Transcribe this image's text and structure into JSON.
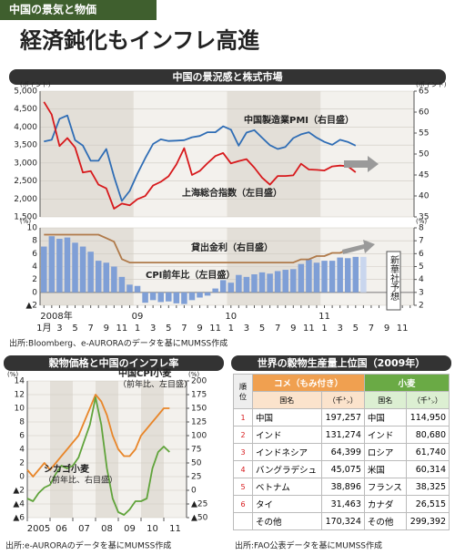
{
  "header": {
    "tag": "中国の景気と物価",
    "title": "経済鈍化もインフレ高進"
  },
  "chart_data": [
    {
      "type": "line",
      "title": "中国の景況感と株式市場",
      "series": [
        {
          "name": "中国製造業PMI（右目盛）",
          "color": "#2f6db5",
          "axis": "y2",
          "values": [
            53.0,
            53.4,
            58.4,
            59.2,
            53.3,
            52.0,
            48.4,
            48.4,
            51.2,
            44.6,
            38.8,
            41.2,
            45.3,
            49.0,
            52.4,
            53.5,
            53.1,
            53.2,
            53.3,
            54.0,
            54.3,
            55.2,
            55.2,
            56.6,
            55.8,
            52.0,
            55.1,
            55.7,
            53.9,
            52.1,
            51.2,
            51.7,
            53.8,
            54.7,
            55.2,
            53.9,
            52.9,
            52.2,
            53.4,
            52.9,
            52.0,
            null,
            null,
            null,
            null,
            null,
            null,
            null
          ]
        },
        {
          "name": "上海総合指数（左目盛）",
          "color": "#d7191c",
          "values": [
            4700,
            4348,
            3473,
            3693,
            3433,
            2736,
            2775,
            2397,
            2293,
            1729,
            1871,
            1821,
            1991,
            2082,
            2373,
            2477,
            2632,
            2959,
            3412,
            2667,
            2779,
            2996,
            3195,
            3277,
            2989,
            3051,
            3109,
            2870,
            2592,
            2398,
            2638,
            2639,
            2656,
            2979,
            2820,
            2808,
            2790,
            2905,
            2928,
            2911,
            2743,
            null,
            null,
            null,
            null,
            null,
            null,
            null
          ]
        }
      ],
      "ylim": [
        1500,
        5000
      ],
      "yticks": [
        {
          "value": 1500,
          "label": "1,500"
        },
        {
          "value": 2000,
          "label": "2,000"
        },
        {
          "value": 2500,
          "label": "2,500"
        },
        {
          "value": 3000,
          "label": "3,000"
        },
        {
          "value": 3500,
          "label": "3,500"
        },
        {
          "value": 4000,
          "label": "4,000"
        },
        {
          "value": 4500,
          "label": "4,500"
        },
        {
          "value": 5000,
          "label": "5,000"
        }
      ],
      "y2lim": [
        35,
        65
      ],
      "y2ticks": [
        35,
        40,
        45,
        50,
        55,
        60,
        65
      ],
      "y_unit": "(ポイント)",
      "y2_unit": "(ポイント)",
      "grid": true
    },
    {
      "type": "combo",
      "categories": [
        "1月",
        null,
        "3",
        null,
        "5",
        null,
        "7",
        null,
        "9",
        null,
        "11",
        null,
        "1",
        null,
        "3",
        null,
        "5",
        null,
        "7",
        null,
        "9",
        null,
        "11",
        null,
        "1",
        null,
        "3",
        null,
        "5",
        null,
        "7",
        null,
        "9",
        null,
        "11",
        null,
        "1",
        null,
        "3",
        null,
        "5",
        null,
        "7",
        null,
        "9",
        null,
        "11",
        null
      ],
      "years": [
        "2008年",
        "09",
        "10",
        "11"
      ],
      "series": [
        {
          "name": "CPI前年比（左目盛）",
          "type": "bar",
          "color": "#7f9fd6",
          "values": [
            7.1,
            8.7,
            8.3,
            8.5,
            7.7,
            7.1,
            6.3,
            4.9,
            4.6,
            4.0,
            2.4,
            1.2,
            1.0,
            -1.6,
            -1.2,
            -1.5,
            -1.4,
            -1.7,
            -1.8,
            -1.2,
            -0.8,
            -0.5,
            0.6,
            1.9,
            1.5,
            2.7,
            2.4,
            2.8,
            3.1,
            2.9,
            3.3,
            3.5,
            3.6,
            4.4,
            5.1,
            4.6,
            4.9,
            4.9,
            5.4,
            5.3,
            5.5,
            null,
            null,
            null,
            null,
            null,
            null,
            null
          ]
        },
        {
          "name": "新華社予想",
          "type": "bar",
          "color": "#c9d6ee",
          "values": [
            null,
            null,
            null,
            null,
            null,
            null,
            null,
            null,
            null,
            null,
            null,
            null,
            null,
            null,
            null,
            null,
            null,
            null,
            null,
            null,
            null,
            null,
            null,
            null,
            null,
            null,
            null,
            null,
            null,
            null,
            null,
            null,
            null,
            null,
            null,
            null,
            null,
            null,
            null,
            null,
            null,
            5.5,
            null,
            null,
            null,
            null,
            null,
            null
          ]
        },
        {
          "name": "貸出金利（右目盛）",
          "type": "line",
          "color": "#b07a4a",
          "axis": "y2",
          "values": [
            7.47,
            7.47,
            7.47,
            7.47,
            7.47,
            7.47,
            7.47,
            7.47,
            7.2,
            6.93,
            5.58,
            5.31,
            5.31,
            5.31,
            5.31,
            5.31,
            5.31,
            5.31,
            5.31,
            5.31,
            5.31,
            5.31,
            5.31,
            5.31,
            5.31,
            5.31,
            5.31,
            5.31,
            5.31,
            5.31,
            5.31,
            5.31,
            5.31,
            5.56,
            5.56,
            5.81,
            5.81,
            6.06,
            6.06,
            6.31,
            6.31,
            null,
            null,
            null,
            null,
            null,
            null,
            null
          ]
        }
      ],
      "ylim": [
        -2,
        10
      ],
      "yticks": [
        {
          "value": -2,
          "label": "▲2"
        },
        0,
        2,
        4,
        6,
        8,
        10
      ],
      "y2lim": [
        2,
        8
      ],
      "y2ticks": [
        2,
        3,
        4,
        5,
        6,
        7,
        8
      ],
      "y_unit": "(%)",
      "y2_unit": "(%)",
      "grid": true,
      "note": "出所:Bloomberg、e-AURORAのデータを基にMUMSS作成"
    },
    {
      "type": "line",
      "title": "穀物価格と中国のインフレ率",
      "x": [
        2005,
        2005.25,
        2005.5,
        2005.75,
        2006,
        2006.25,
        2006.5,
        2006.75,
        2007,
        2007.25,
        2007.5,
        2007.75,
        2008,
        2008.25,
        2008.5,
        2008.75,
        2009,
        2009.25,
        2009.5,
        2009.75,
        2010,
        2010.25,
        2010.5,
        2010.75,
        2011,
        2011.25
      ],
      "xlim": [
        2005,
        2012
      ],
      "xticks": [
        {
          "value": 2005,
          "label": "2005"
        },
        {
          "value": 2006,
          "label": "06"
        },
        {
          "value": 2007,
          "label": "07"
        },
        {
          "value": 2008,
          "label": "08"
        },
        {
          "value": 2009,
          "label": "09"
        },
        {
          "value": 2010,
          "label": "10"
        },
        {
          "value": 2011,
          "label": "11"
        }
      ],
      "series": [
        {
          "name": "中国CPI小麦",
          "name_note": "（前年比、左目盛）",
          "color": "#e8862a",
          "values": [
            1,
            0,
            1,
            2,
            1,
            2,
            3,
            4,
            5,
            6,
            8,
            10,
            12,
            11,
            9,
            6,
            4,
            3,
            3,
            4,
            6,
            7,
            8,
            9,
            10,
            10
          ]
        },
        {
          "name": "シカゴ小麦",
          "name_note": "（前年比、右目盛）",
          "color": "#5fa33a",
          "axis": "y2",
          "values": [
            -15,
            -20,
            -5,
            5,
            10,
            30,
            45,
            40,
            45,
            60,
            90,
            120,
            170,
            120,
            40,
            -15,
            -40,
            -45,
            -35,
            -20,
            -20,
            -15,
            40,
            70,
            80,
            70
          ]
        }
      ],
      "ylim": [
        -6,
        14
      ],
      "yticks": [
        {
          "value": -6,
          "label": "▲6"
        },
        {
          "value": -4,
          "label": "▲4"
        },
        {
          "value": -2,
          "label": "▲2"
        },
        0,
        2,
        4,
        6,
        8,
        10,
        12,
        14
      ],
      "y2lim": [
        -50,
        200
      ],
      "y2ticks": [
        {
          "value": -50,
          "label": "▲50"
        },
        {
          "value": -25,
          "label": "▲25"
        },
        0,
        25,
        50,
        75,
        100,
        125,
        150,
        175,
        200
      ],
      "y_unit": "(%)",
      "y2_unit": "(%)",
      "grid": true,
      "note": "出所:e-AURORAのデータを基にMUMSS作成"
    }
  ],
  "table": {
    "title": "世界の穀物生産量上位国（2009年）",
    "rank_header": "順位",
    "groups": [
      "コメ（もみ付き）",
      "小麦"
    ],
    "columns": [
      "国名",
      "（千㌧）",
      "国名",
      "（千㌧）"
    ],
    "rows": [
      [
        1,
        "中国",
        "197,257",
        "中国",
        "114,950"
      ],
      [
        2,
        "インド",
        "131,274",
        "インド",
        "80,680"
      ],
      [
        3,
        "インドネシア",
        "64,399",
        "ロシア",
        "61,740"
      ],
      [
        4,
        "バングラデシュ",
        "45,075",
        "米国",
        "60,314"
      ],
      [
        5,
        "ベトナム",
        "38,896",
        "フランス",
        "38,325"
      ],
      [
        6,
        "タイ",
        "31,463",
        "カナダ",
        "26,515"
      ],
      [
        null,
        "その他",
        "170,324",
        "その他",
        "299,392"
      ]
    ],
    "note": "出所:FAO公表データを基にMUMSS作成"
  }
}
